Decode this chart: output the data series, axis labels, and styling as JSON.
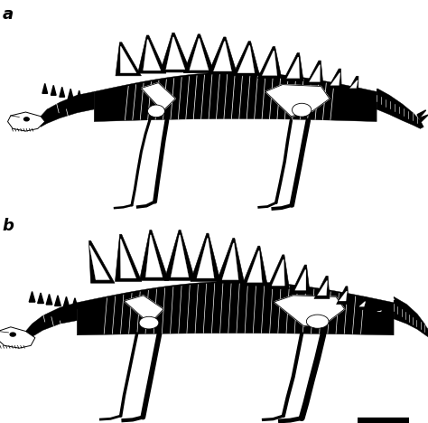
{
  "background_color": "#ffffff",
  "label_a": "a",
  "label_b": "b",
  "label_fontsize": 13,
  "label_fontweight": "bold",
  "scale_bar_color": "#000000",
  "figsize": [
    4.74,
    4.68
  ],
  "dpi": 100,
  "img_target_b64": ""
}
